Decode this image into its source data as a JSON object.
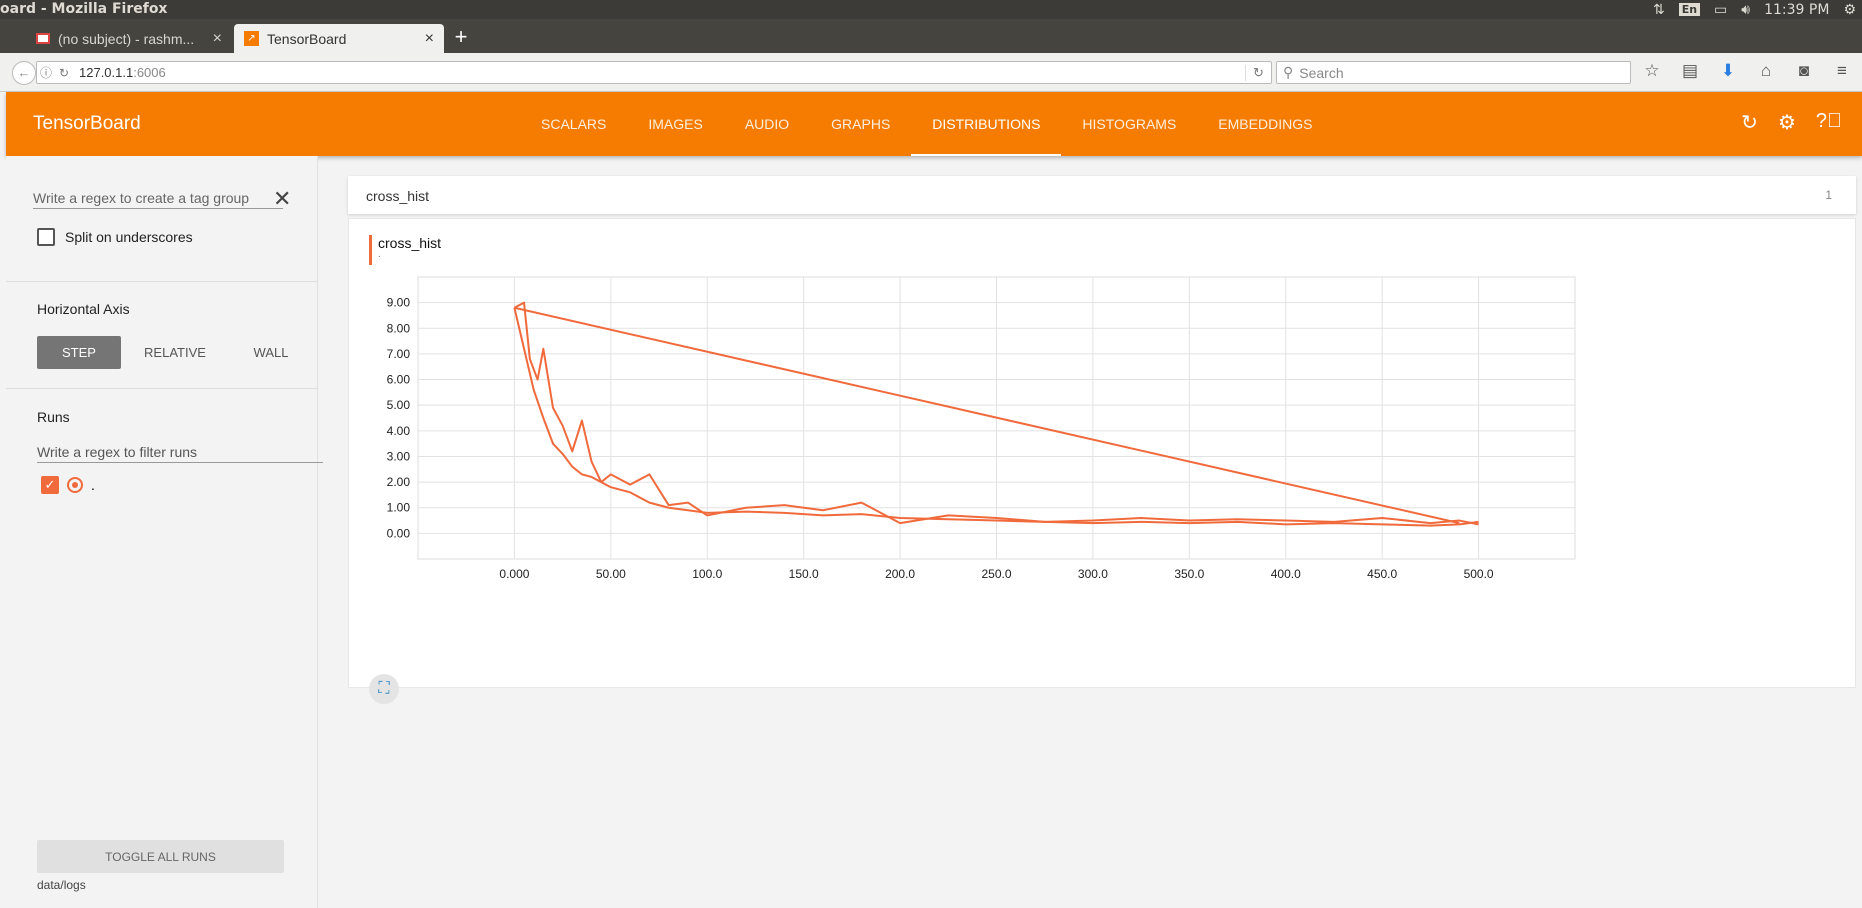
{
  "os": {
    "window_title": "oard - Mozilla Firefox",
    "lang": "En",
    "clock": "11:39 PM"
  },
  "browser": {
    "tabs": [
      {
        "label": "(no subject) - rashm...",
        "favicon": "gmail-icon"
      },
      {
        "label": "TensorBoard",
        "favicon": "tensorboard-icon"
      }
    ],
    "url_host": "127.0.1.1",
    "url_port": ":6006",
    "search_placeholder": "Search"
  },
  "header": {
    "brand": "TensorBoard",
    "tabs": [
      "SCALARS",
      "IMAGES",
      "AUDIO",
      "GRAPHS",
      "DISTRIBUTIONS",
      "HISTOGRAMS",
      "EMBEDDINGS"
    ],
    "active_tab": "DISTRIBUTIONS",
    "accent_color": "#f57c00"
  },
  "sidebar": {
    "tag_regex_placeholder": "Write a regex to create a tag group",
    "split_label": "Split on underscores",
    "axis_title": "Horizontal Axis",
    "axis_options": [
      "STEP",
      "RELATIVE",
      "WALL"
    ],
    "axis_selected": "STEP",
    "runs_title": "Runs",
    "runs_filter_placeholder": "Write a regex to filter runs",
    "run_name": ".",
    "toggle_label": "TOGGLE ALL RUNS",
    "logdir": "data/logs"
  },
  "main": {
    "group_name": "cross_hist",
    "group_count": "1",
    "card_title": "cross_hist",
    "card_subtitle": "."
  },
  "chart_data": {
    "type": "line",
    "title": "cross_hist",
    "series_color": "#f06a3c",
    "xlim": [
      -50,
      550
    ],
    "ylim": [
      -1,
      10
    ],
    "x_ticks": [
      "0.000",
      "50.00",
      "100.0",
      "150.0",
      "200.0",
      "250.0",
      "300.0",
      "350.0",
      "400.0",
      "450.0",
      "500.0"
    ],
    "y_ticks": [
      "0.00",
      "1.00",
      "2.00",
      "3.00",
      "4.00",
      "5.00",
      "6.00",
      "7.00",
      "8.00",
      "9.00"
    ],
    "grid": true,
    "series": [
      {
        "x": [
          0,
          5,
          10,
          15,
          20,
          25,
          30,
          35,
          40,
          45,
          50,
          60,
          70,
          80,
          90,
          100,
          120,
          140,
          160,
          180,
          200,
          225,
          250,
          275,
          300,
          325,
          350,
          375,
          400,
          425,
          450,
          475,
          490,
          500
        ],
        "y": [
          8.8,
          7.2,
          5.6,
          4.5,
          3.5,
          3.1,
          2.6,
          2.3,
          2.2,
          2.0,
          1.8,
          1.6,
          1.2,
          1.0,
          0.9,
          0.8,
          0.85,
          0.8,
          0.7,
          0.75,
          0.6,
          0.55,
          0.5,
          0.45,
          0.4,
          0.45,
          0.4,
          0.45,
          0.35,
          0.4,
          0.35,
          0.3,
          0.35,
          0.45
        ]
      },
      {
        "x": [
          0,
          5,
          8,
          12,
          15,
          20,
          25,
          30,
          35,
          40,
          45,
          50,
          60,
          70,
          80,
          90,
          100,
          120,
          140,
          160,
          180,
          200,
          225,
          250,
          275,
          300,
          325,
          350,
          375,
          400,
          425,
          450,
          475,
          490,
          500
        ],
        "y": [
          8.8,
          9.0,
          6.8,
          6.0,
          7.2,
          4.9,
          4.2,
          3.2,
          4.4,
          2.8,
          2.0,
          2.3,
          1.9,
          2.3,
          1.1,
          1.2,
          0.7,
          1.0,
          1.1,
          0.9,
          1.2,
          0.4,
          0.7,
          0.6,
          0.45,
          0.5,
          0.6,
          0.5,
          0.55,
          0.5,
          0.45,
          0.6,
          0.4,
          0.5,
          0.35
        ]
      },
      {
        "x": [
          0,
          490
        ],
        "y": [
          8.8,
          0.4
        ]
      }
    ]
  }
}
